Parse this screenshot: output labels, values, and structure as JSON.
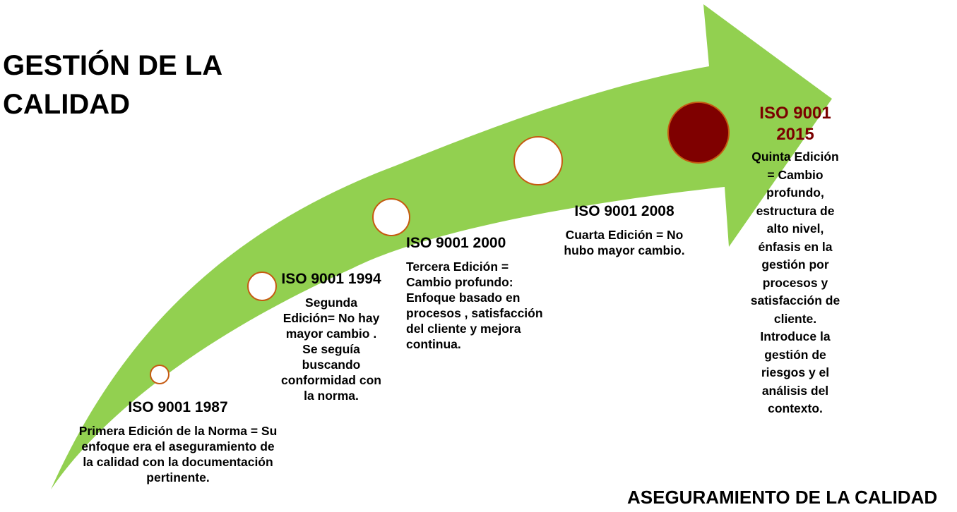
{
  "title": {
    "line1": "GESTIÓN DE LA",
    "line2": "CALIDAD"
  },
  "footer": {
    "label": "ASEGURAMIENTO DE LA CALIDAD"
  },
  "colors": {
    "arrow": "#92d050",
    "marker_fill": "#ffffff",
    "marker_border": "#c55a11",
    "highlight_marker": "#7f0000",
    "highlight_text": "#7b0000"
  },
  "milestones": [
    {
      "heading": "ISO 9001 1987",
      "body": "Primera Edición de la Norma = Su enfoque era el aseguramiento de la calidad con la documentación pertinente."
    },
    {
      "heading": "ISO 9001 1994",
      "body": "Segunda Edición= No hay mayor cambio . Se seguía buscando conformidad con la norma."
    },
    {
      "heading": "ISO 9001 2000",
      "body": "Tercera Edición = Cambio profundo: Enfoque basado en procesos , satisfacción del cliente y mejora continua."
    },
    {
      "heading": "ISO 9001 2008",
      "body": "Cuarta Edición = No hubo mayor cambio."
    },
    {
      "heading": "ISO 9001 2015",
      "body": "Quinta Edición = Cambio profundo, estructura de alto nivel, énfasis en la gestión por procesos y satisfacción de cliente. Introduce la gestión de riesgos y el análisis del contexto."
    }
  ]
}
